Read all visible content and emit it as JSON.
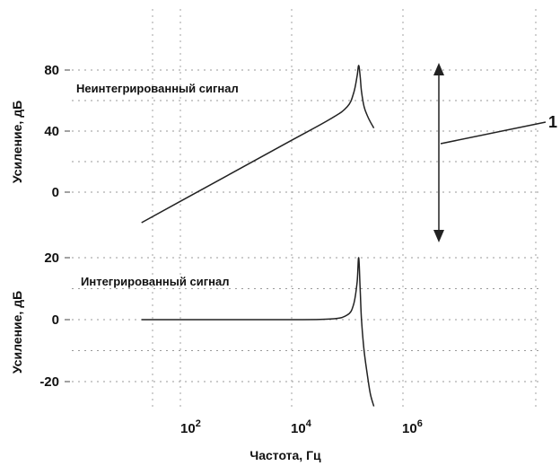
{
  "chart_data": [
    {
      "type": "line",
      "ylabel": "Усиление, дБ",
      "x_scale": "log",
      "xlim": [
        20,
        300000
      ],
      "ylim": [
        -24,
        115
      ],
      "y_ticks": [
        0,
        40,
        80
      ],
      "y_tick_labels": [
        "0",
        "40",
        "80"
      ],
      "grid": true,
      "annotations": [
        {
          "text": "Неинтегрированный сигнал"
        },
        {
          "text": "1"
        }
      ],
      "series": [
        {
          "x": [
            20,
            100,
            1000,
            10000,
            50000,
            100000,
            130000,
            150000,
            160000,
            170000,
            180000,
            200000,
            230000,
            260000,
            300000
          ],
          "y": [
            -20,
            -6,
            14,
            34,
            48,
            56,
            65,
            76,
            83,
            76,
            66,
            56,
            50,
            46,
            42
          ]
        }
      ]
    },
    {
      "type": "line",
      "xlabel": "Частота, Гц",
      "ylabel": "Усиление, дБ",
      "x_scale": "log",
      "xlim": [
        20,
        300000
      ],
      "ylim": [
        -30,
        30
      ],
      "x_ticks": [
        100,
        10000,
        1000000
      ],
      "x_tick_labels": [
        "10^2",
        "10^4",
        "10^6"
      ],
      "y_ticks": [
        -20,
        0,
        20
      ],
      "y_tick_labels": [
        "-20",
        "0",
        "20"
      ],
      "grid": true,
      "annotations": [
        {
          "text": "Интегрированный сигнал"
        }
      ],
      "series": [
        {
          "x": [
            20,
            100,
            1000,
            10000,
            50000,
            100000,
            130000,
            150000,
            160000,
            170000,
            180000,
            200000,
            230000,
            260000,
            300000
          ],
          "y": [
            0,
            0,
            0,
            0,
            0.2,
            1.5,
            5,
            12,
            20,
            10,
            0,
            -10,
            -18,
            -24,
            -28
          ]
        }
      ]
    }
  ]
}
